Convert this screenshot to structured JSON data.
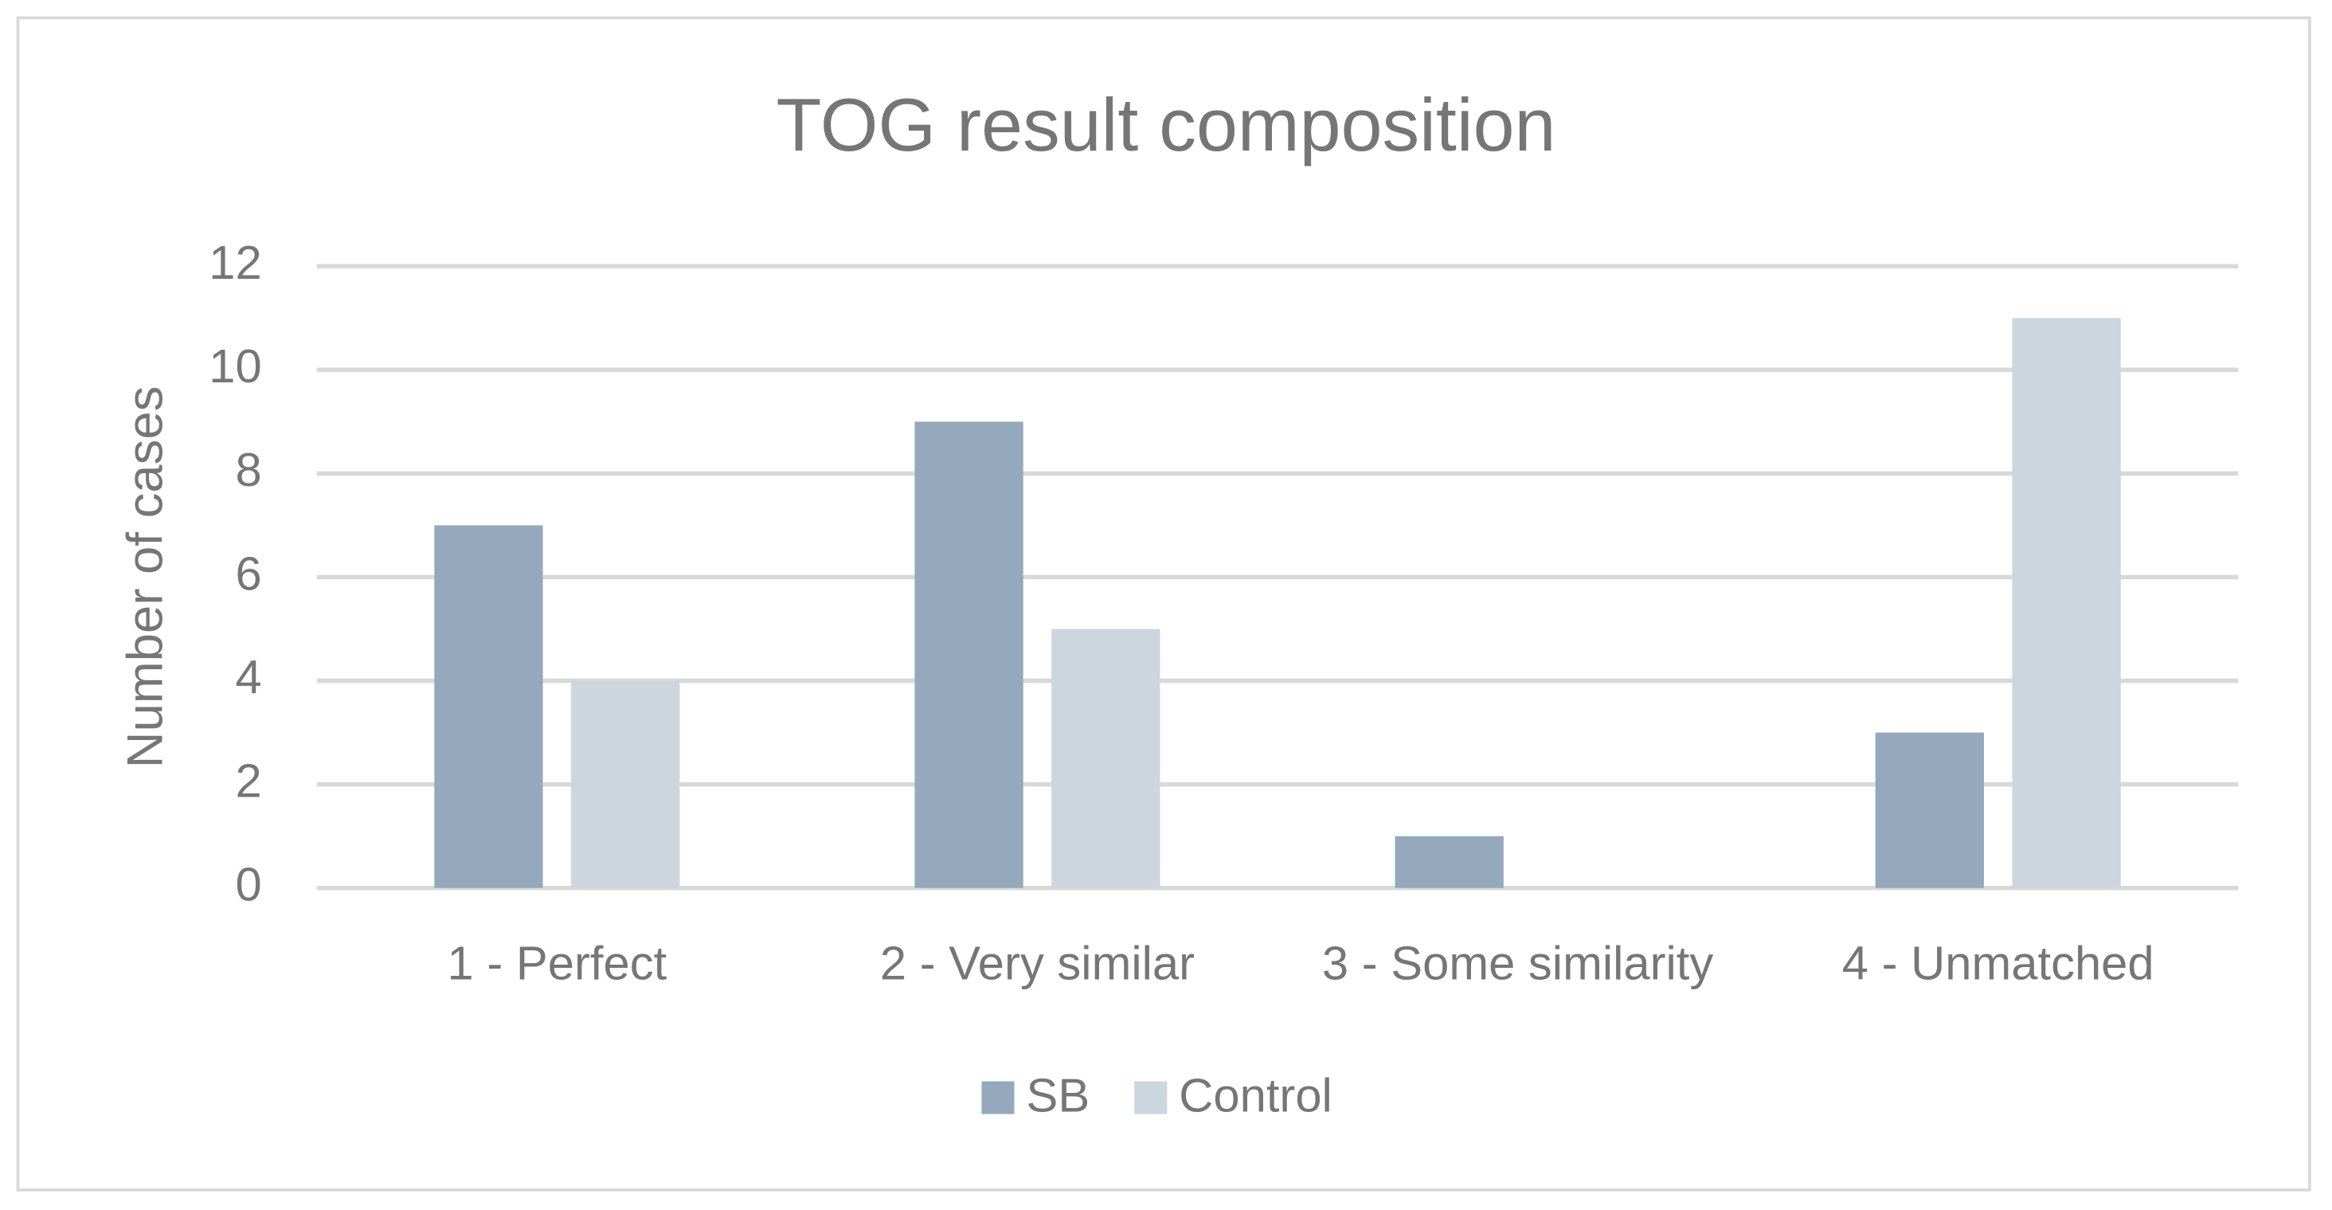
{
  "chart_data": {
    "type": "bar",
    "title": "TOG result composition",
    "y_label": "Number of cases",
    "categories": [
      "1 - Perfect",
      "2 - Very similar",
      "3 - Some similarity",
      "4 - Unmatched"
    ],
    "series": [
      {
        "name": "SB",
        "color": "#95a9bd",
        "values": [
          7,
          9,
          1,
          3
        ]
      },
      {
        "name": "Control",
        "color": "#ccd6df",
        "values": [
          4,
          5,
          0,
          11
        ]
      }
    ],
    "ylim": [
      0,
      12
    ],
    "yticks": [
      0,
      2,
      4,
      6,
      8,
      10,
      12
    ],
    "grid": true,
    "legend": "bottom"
  }
}
